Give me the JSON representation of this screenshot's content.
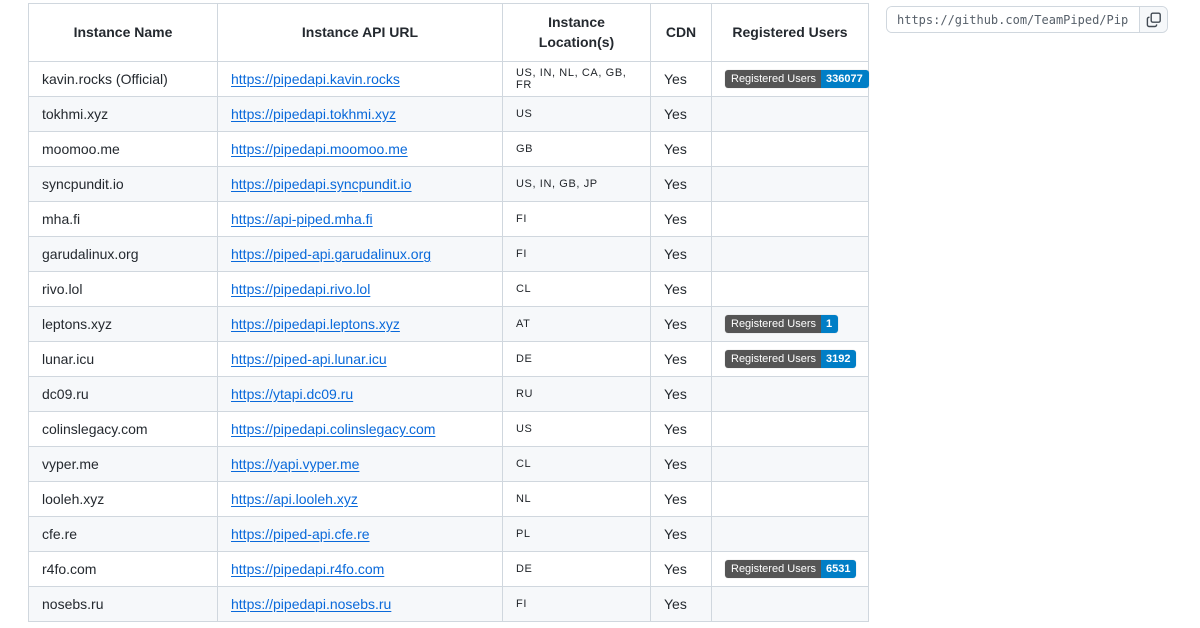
{
  "address_bar": {
    "url": "https://github.com/TeamPiped/Piped.w",
    "copy_icon": "copy-icon"
  },
  "theme": {
    "link_color": "#0969da",
    "table_border": "#d0d7de",
    "alt_row_bg": "#f6f8fa",
    "text_color": "#24292f"
  },
  "table": {
    "headers": [
      "Instance Name",
      "Instance API URL",
      "Instance Location(s)",
      "CDN",
      "Registered Users"
    ],
    "badge": {
      "label": "Registered Users",
      "label_bg": "#555555",
      "value_bg": "#007ec6"
    },
    "rows": [
      {
        "name": "kavin.rocks (Official)",
        "api_url": "https://pipedapi.kavin.rocks",
        "locations": "US, IN, NL, CA, GB, FR",
        "cdn": "Yes",
        "registered_users": "336077"
      },
      {
        "name": "tokhmi.xyz",
        "api_url": "https://pipedapi.tokhmi.xyz",
        "locations": "US",
        "cdn": "Yes",
        "registered_users": null
      },
      {
        "name": "moomoo.me",
        "api_url": "https://pipedapi.moomoo.me",
        "locations": "GB",
        "cdn": "Yes",
        "registered_users": null
      },
      {
        "name": "syncpundit.io",
        "api_url": "https://pipedapi.syncpundit.io",
        "locations": "US, IN, GB, JP",
        "cdn": "Yes",
        "registered_users": null
      },
      {
        "name": "mha.fi",
        "api_url": "https://api-piped.mha.fi",
        "locations": "FI",
        "cdn": "Yes",
        "registered_users": null
      },
      {
        "name": "garudalinux.org",
        "api_url": "https://piped-api.garudalinux.org",
        "locations": "FI",
        "cdn": "Yes",
        "registered_users": null
      },
      {
        "name": "rivo.lol",
        "api_url": "https://pipedapi.rivo.lol",
        "locations": "CL",
        "cdn": "Yes",
        "registered_users": null
      },
      {
        "name": "leptons.xyz",
        "api_url": "https://pipedapi.leptons.xyz",
        "locations": "AT",
        "cdn": "Yes",
        "registered_users": "1"
      },
      {
        "name": "lunar.icu",
        "api_url": "https://piped-api.lunar.icu",
        "locations": "DE",
        "cdn": "Yes",
        "registered_users": "3192"
      },
      {
        "name": "dc09.ru",
        "api_url": "https://ytapi.dc09.ru",
        "locations": "RU",
        "cdn": "Yes",
        "registered_users": null
      },
      {
        "name": "colinslegacy.com",
        "api_url": "https://pipedapi.colinslegacy.com",
        "locations": "US",
        "cdn": "Yes",
        "registered_users": null
      },
      {
        "name": "vyper.me",
        "api_url": "https://yapi.vyper.me",
        "locations": "CL",
        "cdn": "Yes",
        "registered_users": null
      },
      {
        "name": "looleh.xyz",
        "api_url": "https://api.looleh.xyz",
        "locations": "NL",
        "cdn": "Yes",
        "registered_users": null
      },
      {
        "name": "cfe.re",
        "api_url": "https://piped-api.cfe.re",
        "locations": "PL",
        "cdn": "Yes",
        "registered_users": null
      },
      {
        "name": "r4fo.com",
        "api_url": "https://pipedapi.r4fo.com",
        "locations": "DE",
        "cdn": "Yes",
        "registered_users": "6531"
      },
      {
        "name": "nosebs.ru",
        "api_url": "https://pipedapi.nosebs.ru",
        "locations": "FI",
        "cdn": "Yes",
        "registered_users": null
      }
    ]
  }
}
